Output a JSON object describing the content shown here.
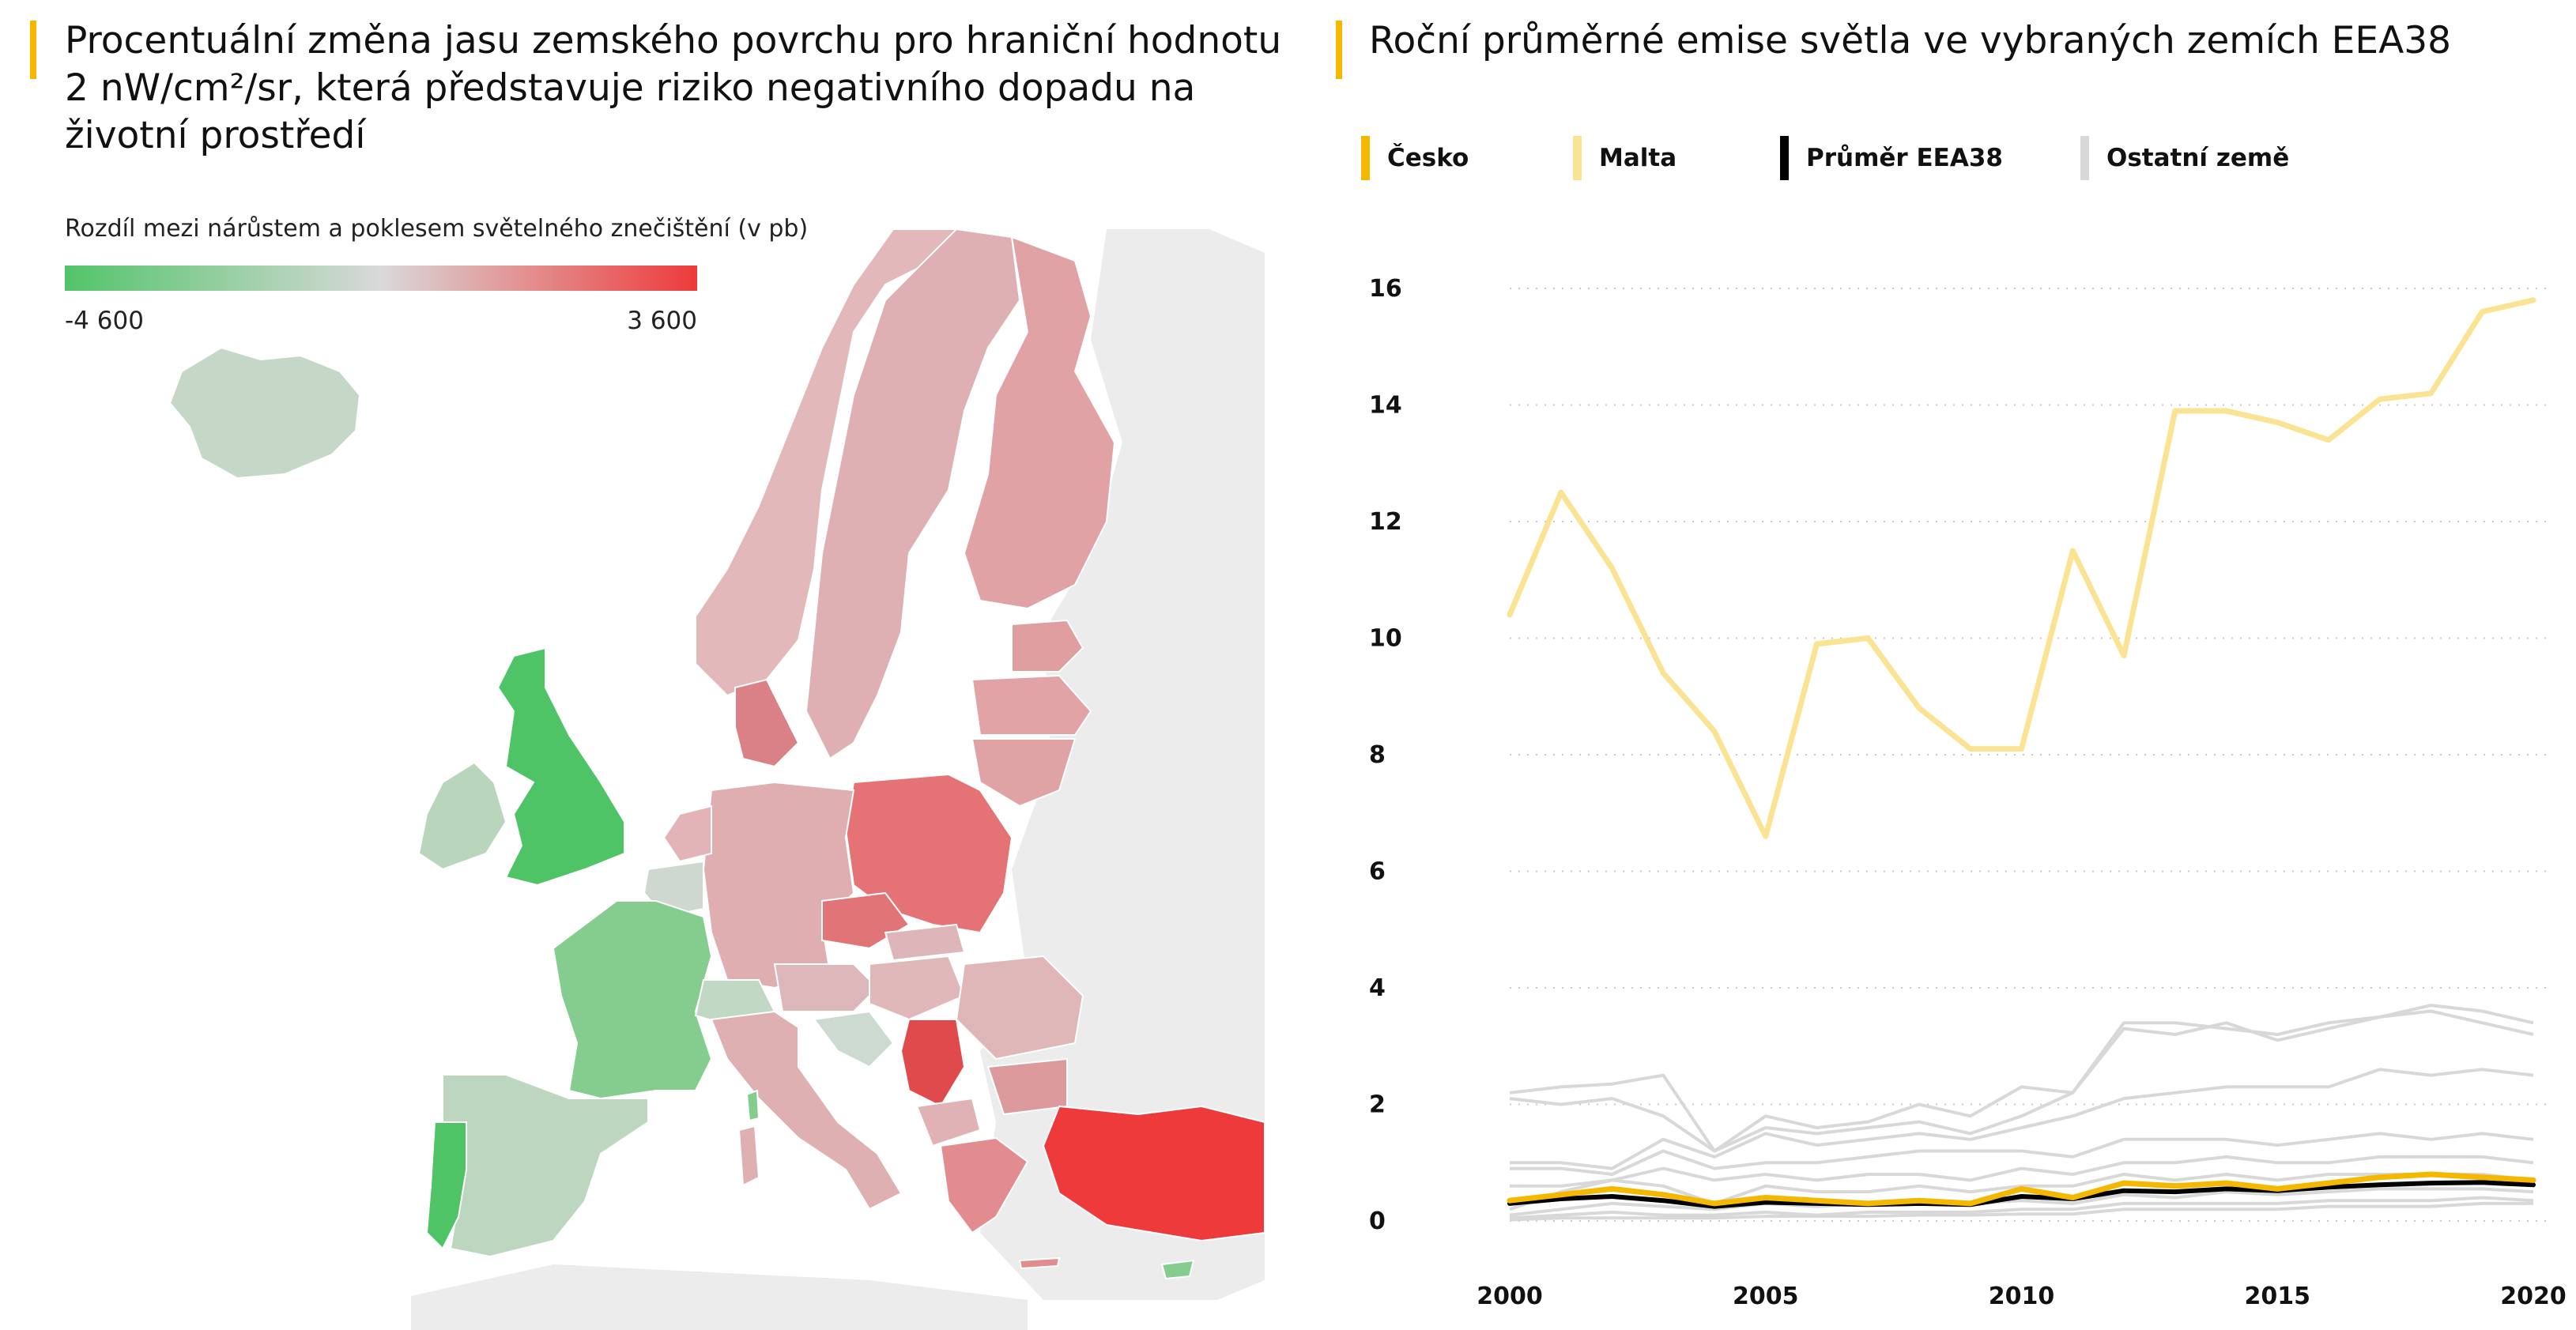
{
  "left_panel": {
    "title": "Procentuální změna jasu zemského povrchu pro hraniční hodnotu 2 nW/cm²/sr, která představuje riziko negativního dopadu na životní prostředí",
    "scale_title": "Rozdíl mezi nárůstem a poklesem světelného znečištění (v pb)",
    "scale_min": "-4 600",
    "scale_max": "3 600",
    "colors": {
      "low": "#52c46a",
      "mid": "#d9d9d9",
      "high": "#ee3a3b"
    }
  },
  "chart_data": {
    "type": "line",
    "title": "Roční průměrné emise světla ve vybraných zemích EEA38",
    "xlabel": "",
    "ylabel": "",
    "x": [
      2000,
      2001,
      2002,
      2003,
      2004,
      2005,
      2006,
      2007,
      2008,
      2009,
      2010,
      2011,
      2012,
      2013,
      2014,
      2015,
      2016,
      2017,
      2018,
      2019,
      2020
    ],
    "xticks": [
      "2000",
      "2005",
      "2010",
      "2015",
      "2020"
    ],
    "yticks": [
      "0",
      "2",
      "4",
      "6",
      "8",
      "10",
      "12",
      "14",
      "16"
    ],
    "ylim": [
      0,
      16
    ],
    "grid": "horizontal dotted",
    "legend_position": "top",
    "series": [
      {
        "name": "Česko",
        "color": "#f5b800",
        "width": 7,
        "values": [
          0.35,
          0.45,
          0.55,
          0.45,
          0.3,
          0.4,
          0.35,
          0.3,
          0.35,
          0.3,
          0.55,
          0.4,
          0.65,
          0.6,
          0.65,
          0.55,
          0.65,
          0.75,
          0.8,
          0.75,
          0.7
        ]
      },
      {
        "name": "Malta",
        "color": "#fae493",
        "width": 7,
        "values": [
          10.4,
          12.5,
          11.2,
          9.4,
          8.4,
          6.6,
          9.9,
          10.0,
          8.8,
          8.1,
          8.1,
          11.5,
          9.7,
          13.9,
          13.9,
          13.7,
          13.4,
          14.1,
          14.2,
          15.6,
          15.8
        ]
      },
      {
        "name": "Průměr EEA38",
        "color": "#000000",
        "width": 6,
        "values": [
          0.3,
          0.38,
          0.42,
          0.35,
          0.25,
          0.32,
          0.3,
          0.28,
          0.3,
          0.28,
          0.42,
          0.38,
          0.52,
          0.5,
          0.55,
          0.52,
          0.58,
          0.62,
          0.65,
          0.66,
          0.62
        ]
      }
    ],
    "other_series": {
      "name": "Ostatní země",
      "color": "#d8d8d8",
      "lines": [
        [
          2.2,
          2.3,
          2.35,
          2.5,
          1.2,
          1.8,
          1.6,
          1.7,
          2.0,
          1.8,
          2.3,
          2.2,
          3.4,
          3.4,
          3.3,
          3.2,
          3.4,
          3.5,
          3.7,
          3.6,
          3.4
        ],
        [
          2.1,
          2.0,
          2.1,
          1.8,
          1.2,
          1.6,
          1.5,
          1.6,
          1.7,
          1.5,
          1.8,
          2.2,
          3.3,
          3.2,
          3.4,
          3.1,
          3.3,
          3.5,
          3.6,
          3.4,
          3.2
        ],
        [
          1.0,
          1.0,
          0.9,
          1.4,
          1.1,
          1.5,
          1.3,
          1.4,
          1.5,
          1.4,
          1.6,
          1.8,
          2.1,
          2.2,
          2.3,
          2.3,
          2.3,
          2.6,
          2.5,
          2.6,
          2.5
        ],
        [
          0.9,
          0.9,
          0.8,
          1.2,
          0.9,
          1.0,
          1.0,
          1.1,
          1.2,
          1.2,
          1.2,
          1.1,
          1.4,
          1.4,
          1.4,
          1.3,
          1.4,
          1.5,
          1.4,
          1.5,
          1.4
        ],
        [
          0.6,
          0.6,
          0.7,
          0.9,
          0.7,
          0.8,
          0.7,
          0.8,
          0.8,
          0.7,
          0.9,
          0.8,
          1.0,
          1.0,
          1.1,
          1.0,
          1.0,
          1.1,
          1.1,
          1.1,
          1.0
        ],
        [
          0.2,
          0.5,
          0.7,
          0.6,
          0.3,
          0.6,
          0.5,
          0.5,
          0.6,
          0.5,
          0.6,
          0.6,
          0.8,
          0.7,
          0.8,
          0.7,
          0.8,
          0.8,
          0.8,
          0.8,
          0.7
        ],
        [
          0.1,
          0.2,
          0.3,
          0.25,
          0.2,
          0.3,
          0.25,
          0.3,
          0.3,
          0.3,
          0.35,
          0.3,
          0.45,
          0.4,
          0.5,
          0.45,
          0.5,
          0.55,
          0.55,
          0.55,
          0.5
        ],
        [
          0.05,
          0.1,
          0.15,
          0.1,
          0.1,
          0.15,
          0.1,
          0.15,
          0.15,
          0.15,
          0.2,
          0.2,
          0.3,
          0.3,
          0.3,
          0.3,
          0.35,
          0.35,
          0.35,
          0.4,
          0.35
        ],
        [
          0.02,
          0.05,
          0.05,
          0.05,
          0.05,
          0.08,
          0.08,
          0.08,
          0.1,
          0.1,
          0.12,
          0.12,
          0.2,
          0.2,
          0.2,
          0.2,
          0.25,
          0.25,
          0.25,
          0.3,
          0.3
        ]
      ]
    }
  }
}
